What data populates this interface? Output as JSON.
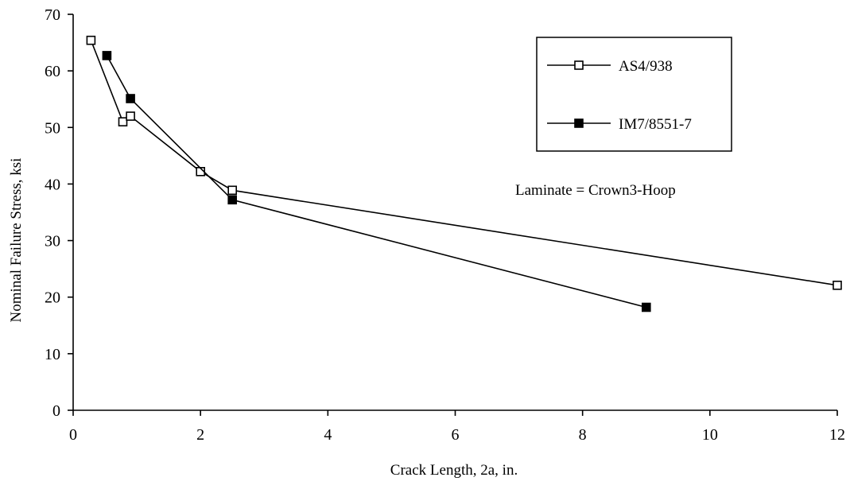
{
  "chart_data": {
    "type": "line",
    "title": "",
    "xlabel": "Crack Length, 2a, in.",
    "ylabel": "Nominal Failure Stress, ksi",
    "xlim": [
      0,
      12
    ],
    "ylim": [
      0,
      70
    ],
    "xticks": [
      0,
      2,
      4,
      6,
      8,
      10,
      12
    ],
    "yticks": [
      0,
      10,
      20,
      30,
      40,
      50,
      60,
      70
    ],
    "xtick_labels": [
      "0",
      "2",
      "4",
      "6",
      "8",
      "10",
      "12"
    ],
    "ytick_labels": [
      "0",
      "10",
      "20",
      "30",
      "40",
      "50",
      "60",
      "70"
    ],
    "grid": false,
    "legend_position": "top-right",
    "annotation": "Laminate = Crown3-Hoop",
    "series": [
      {
        "name": "AS4/938",
        "marker": "open-square",
        "color": "#000000",
        "x": [
          0.28,
          0.78,
          0.9,
          2.0,
          2.5,
          12.0
        ],
        "y": [
          65.4,
          51.0,
          52.0,
          42.2,
          38.9,
          22.1
        ]
      },
      {
        "name": "IM7/8551-7",
        "marker": "filled-square",
        "color": "#000000",
        "x": [
          0.53,
          0.9,
          2.5,
          9.0
        ],
        "y": [
          62.7,
          55.1,
          37.2,
          18.2
        ]
      }
    ]
  }
}
